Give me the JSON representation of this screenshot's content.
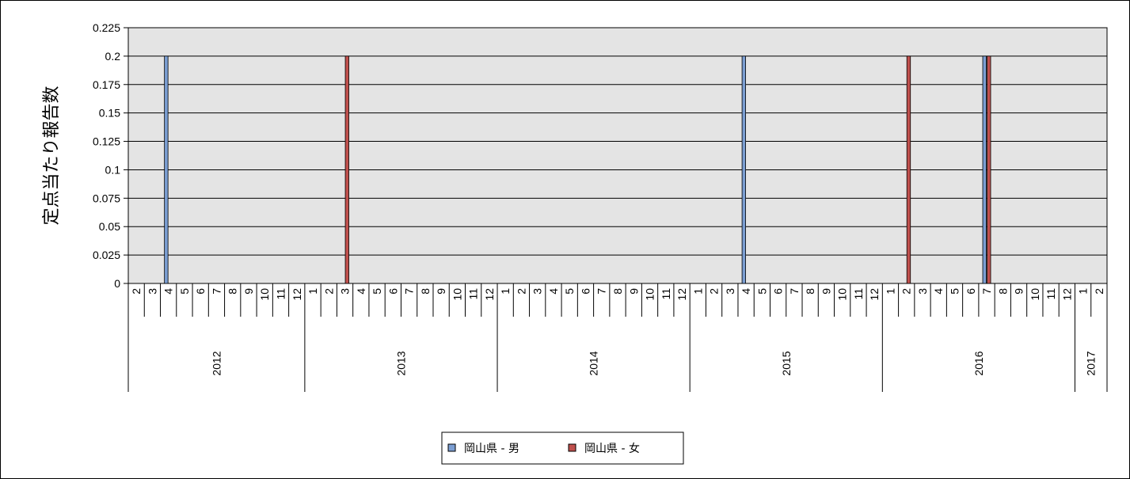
{
  "chart_data": {
    "type": "bar",
    "title": "",
    "ylabel": "定点当たり報告数",
    "xlabel": "",
    "ylim": [
      0,
      0.225
    ],
    "yticks": [
      "0",
      "0.025",
      "0.05",
      "0.075",
      "0.1",
      "0.125",
      "0.15",
      "0.175",
      "0.2",
      "0.225"
    ],
    "grid": true,
    "legend_position": "bottom-center",
    "plot_background": "#e4e4e4",
    "categories": [
      "2",
      "3",
      "4",
      "5",
      "6",
      "7",
      "8",
      "9",
      "10",
      "11",
      "12",
      "1",
      "2",
      "3",
      "4",
      "5",
      "6",
      "7",
      "8",
      "9",
      "10",
      "11",
      "12",
      "1",
      "2",
      "3",
      "4",
      "5",
      "6",
      "7",
      "8",
      "9",
      "10",
      "11",
      "12",
      "1",
      "2",
      "3",
      "4",
      "5",
      "6",
      "7",
      "8",
      "9",
      "10",
      "11",
      "12",
      "1",
      "2",
      "3",
      "4",
      "5",
      "6",
      "7",
      "8",
      "9",
      "10",
      "11",
      "12",
      "1",
      "2"
    ],
    "year_groups": [
      {
        "label": "2012",
        "count": 11
      },
      {
        "label": "2013",
        "count": 12
      },
      {
        "label": "2014",
        "count": 12
      },
      {
        "label": "2015",
        "count": 12
      },
      {
        "label": "2016",
        "count": 12
      },
      {
        "label": "2017",
        "count": 2
      }
    ],
    "series": [
      {
        "name": "岡山県 - 男",
        "color": "#7b9ed2",
        "values": [
          0,
          0,
          0.2,
          0,
          0,
          0,
          0,
          0,
          0,
          0,
          0,
          0,
          0,
          0,
          0,
          0,
          0,
          0,
          0,
          0,
          0,
          0,
          0,
          0,
          0,
          0,
          0,
          0,
          0,
          0,
          0,
          0,
          0,
          0,
          0,
          0,
          0,
          0,
          0.2,
          0,
          0,
          0,
          0,
          0,
          0,
          0,
          0,
          0,
          0,
          0,
          0,
          0,
          0,
          0.2,
          0,
          0,
          0,
          0,
          0,
          0,
          0
        ]
      },
      {
        "name": "岡山県 - 女",
        "color": "#c0504d",
        "values": [
          0,
          0,
          0,
          0,
          0,
          0,
          0,
          0,
          0,
          0,
          0,
          0,
          0,
          0.2,
          0,
          0,
          0,
          0,
          0,
          0,
          0,
          0,
          0,
          0,
          0,
          0,
          0,
          0,
          0,
          0,
          0,
          0,
          0,
          0,
          0,
          0,
          0,
          0,
          0,
          0,
          0,
          0,
          0,
          0,
          0,
          0,
          0,
          0,
          0.2,
          0,
          0,
          0,
          0,
          0.2,
          0,
          0,
          0,
          0,
          0,
          0,
          0
        ]
      }
    ]
  }
}
